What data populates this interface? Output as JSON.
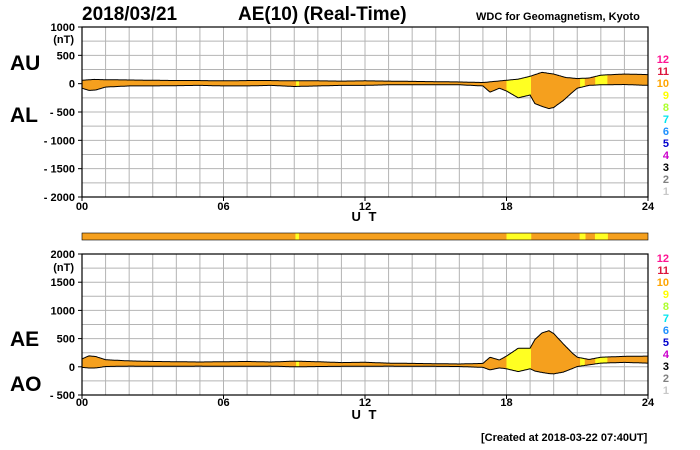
{
  "header": {
    "date": "2018/03/21",
    "title": "AE(10) (Real-Time)",
    "organization": "WDC for Geomagnetism, Kyoto"
  },
  "footer": {
    "created": "[Created at 2018-03-22 07:40UT]"
  },
  "colors": {
    "fill_main": "#f5a01e",
    "fill_low": "#ffff22",
    "grid": "#b4b4b4"
  },
  "station_scale": [
    {
      "label": "12",
      "color": "#ff1493"
    },
    {
      "label": "11",
      "color": "#dc143c"
    },
    {
      "label": "10",
      "color": "#ffa500"
    },
    {
      "label": "9",
      "color": "#ffff00"
    },
    {
      "label": "8",
      "color": "#adff2f"
    },
    {
      "label": "7",
      "color": "#00e5ee"
    },
    {
      "label": "6",
      "color": "#1e90ff"
    },
    {
      "label": "5",
      "color": "#0000cd"
    },
    {
      "label": "4",
      "color": "#cc00cc"
    },
    {
      "label": "3",
      "color": "#000000"
    },
    {
      "label": "2",
      "color": "#808080"
    },
    {
      "label": "1",
      "color": "#c8c8c8"
    }
  ],
  "station_bar": {
    "low_ranges_hours": [
      [
        9.05,
        9.2
      ],
      [
        18.0,
        19.05
      ],
      [
        21.1,
        21.35
      ],
      [
        21.75,
        22.3
      ]
    ]
  },
  "chart_data": [
    {
      "type": "area",
      "panel": "AU/AL",
      "labels": {
        "upper": "AU",
        "lower": "AL"
      },
      "unit": "(nT)",
      "xlabel": "U T",
      "ylim": [
        -2000,
        1000
      ],
      "yticks": [
        {
          "value": 1000,
          "label": "1000"
        },
        {
          "value": 500,
          "label": "500"
        },
        {
          "value": 0,
          "label": "0"
        },
        {
          "value": -500,
          "label": "- 500"
        },
        {
          "value": -1000,
          "label": "- 1000"
        },
        {
          "value": -1500,
          "label": "- 1500"
        },
        {
          "value": -2000,
          "label": "- 2000"
        }
      ],
      "xlim": [
        0,
        24
      ],
      "xticks": [
        {
          "value": 0,
          "label": "00"
        },
        {
          "value": 6,
          "label": "06"
        },
        {
          "value": 12,
          "label": "12"
        },
        {
          "value": 18,
          "label": "18"
        },
        {
          "value": 24,
          "label": "24"
        }
      ],
      "series": [
        {
          "name": "AU",
          "x": [
            0,
            0.5,
            1,
            2,
            3,
            4,
            5,
            6,
            7,
            8,
            9,
            10,
            11,
            12,
            13,
            14,
            15,
            16,
            17,
            17.5,
            18,
            18.5,
            19,
            19.5,
            20,
            20.5,
            21,
            21.5,
            22,
            23,
            24
          ],
          "values": [
            60,
            75,
            70,
            65,
            60,
            55,
            55,
            50,
            55,
            55,
            50,
            50,
            45,
            50,
            45,
            40,
            35,
            30,
            20,
            40,
            60,
            80,
            130,
            200,
            170,
            110,
            90,
            100,
            150,
            170,
            160
          ]
        },
        {
          "name": "AL",
          "x": [
            0,
            0.3,
            0.6,
            1,
            2,
            3,
            4,
            5,
            6,
            7,
            8,
            9,
            10,
            11,
            12,
            13,
            14,
            15,
            16,
            17,
            17.3,
            17.7,
            18,
            18.5,
            19,
            19.2,
            19.5,
            19.8,
            20,
            20.4,
            20.8,
            21,
            21.5,
            22,
            23,
            24
          ],
          "values": [
            -80,
            -120,
            -110,
            -60,
            -40,
            -40,
            -35,
            -30,
            -40,
            -40,
            -30,
            -50,
            -40,
            -30,
            -30,
            -20,
            -20,
            -20,
            -20,
            -40,
            -150,
            -80,
            -130,
            -250,
            -200,
            -350,
            -400,
            -440,
            -420,
            -300,
            -150,
            -80,
            -30,
            -20,
            -15,
            -30
          ]
        }
      ]
    },
    {
      "type": "area",
      "panel": "AE/AO",
      "labels": {
        "upper": "AE",
        "lower": "AO"
      },
      "unit": "(nT)",
      "xlabel": "U T",
      "ylim": [
        -500,
        2000
      ],
      "yticks": [
        {
          "value": 2000,
          "label": "2000"
        },
        {
          "value": 1500,
          "label": "1500"
        },
        {
          "value": 1000,
          "label": "1000"
        },
        {
          "value": 500,
          "label": "500"
        },
        {
          "value": 0,
          "label": "0"
        },
        {
          "value": -500,
          "label": "- 500"
        }
      ],
      "xlim": [
        0,
        24
      ],
      "xticks": [
        {
          "value": 0,
          "label": "00"
        },
        {
          "value": 6,
          "label": "06"
        },
        {
          "value": 12,
          "label": "12"
        },
        {
          "value": 18,
          "label": "18"
        },
        {
          "value": 24,
          "label": "24"
        }
      ],
      "series": [
        {
          "name": "AE",
          "x": [
            0,
            0.3,
            0.6,
            1,
            2,
            3,
            4,
            5,
            6,
            7,
            8,
            9,
            10,
            11,
            12,
            13,
            14,
            15,
            16,
            17,
            17.3,
            17.7,
            18,
            18.5,
            19,
            19.2,
            19.5,
            19.8,
            20,
            20.4,
            20.8,
            21,
            21.5,
            22,
            23,
            24
          ],
          "values": [
            140,
            195,
            180,
            125,
            105,
            95,
            90,
            85,
            90,
            95,
            85,
            100,
            90,
            75,
            80,
            65,
            60,
            55,
            50,
            60,
            170,
            120,
            190,
            330,
            330,
            480,
            600,
            640,
            590,
            410,
            240,
            170,
            130,
            170,
            185,
            190
          ]
        },
        {
          "name": "AO",
          "x": [
            0,
            0.3,
            0.6,
            1,
            2,
            3,
            4,
            5,
            6,
            7,
            8,
            9,
            10,
            11,
            12,
            13,
            14,
            15,
            16,
            17,
            17.3,
            17.7,
            18,
            18.5,
            19,
            19.2,
            19.5,
            19.8,
            20,
            20.4,
            20.8,
            21,
            21.5,
            22,
            23,
            24
          ],
          "values": [
            -10,
            -22,
            -20,
            5,
            12,
            10,
            10,
            12,
            8,
            8,
            12,
            0,
            5,
            8,
            10,
            12,
            10,
            8,
            5,
            -10,
            -55,
            -20,
            -35,
            -85,
            -35,
            -75,
            -100,
            -120,
            -125,
            -95,
            -30,
            5,
            35,
            65,
            78,
            65
          ]
        }
      ]
    }
  ]
}
